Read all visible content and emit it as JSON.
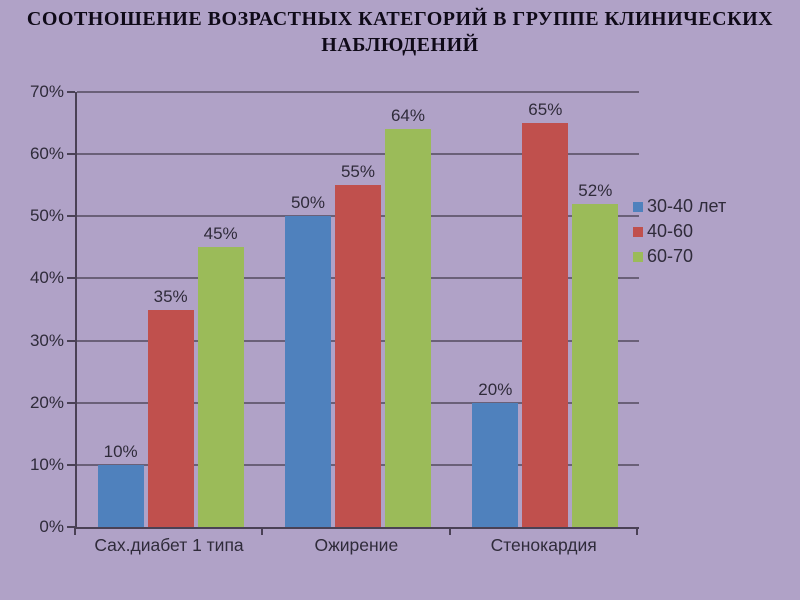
{
  "title": "СООТНОШЕНИЕ ВОЗРАСТНЫХ КАТЕГОРИЙ В ГРУППЕ КЛИНИЧЕСКИХ НАБЛЮДЕНИЙ",
  "chart_data": {
    "type": "bar",
    "categories": [
      "Сах.диабет 1 типа",
      "Ожирение",
      "Стенокардия"
    ],
    "series": [
      {
        "name": "30-40 лет",
        "color": "#4F81BD",
        "values": [
          10,
          50,
          20
        ]
      },
      {
        "name": "40-60",
        "color": "#C0504D",
        "values": [
          35,
          55,
          65
        ]
      },
      {
        "name": "60-70",
        "color": "#9BBB59",
        "values": [
          45,
          64,
          52
        ]
      }
    ],
    "value_suffix": "%",
    "y_ticks": [
      0,
      10,
      20,
      30,
      40,
      50,
      60,
      70
    ],
    "ylim": [
      0,
      70
    ],
    "grid": true,
    "data_labels": true,
    "legend_position": "right"
  },
  "colors": {
    "background": "#B0A2C7",
    "gridline": "#6A6078",
    "axis": "#4A4155",
    "text": "#2F2B3A",
    "title_text": "#0F0A18"
  }
}
